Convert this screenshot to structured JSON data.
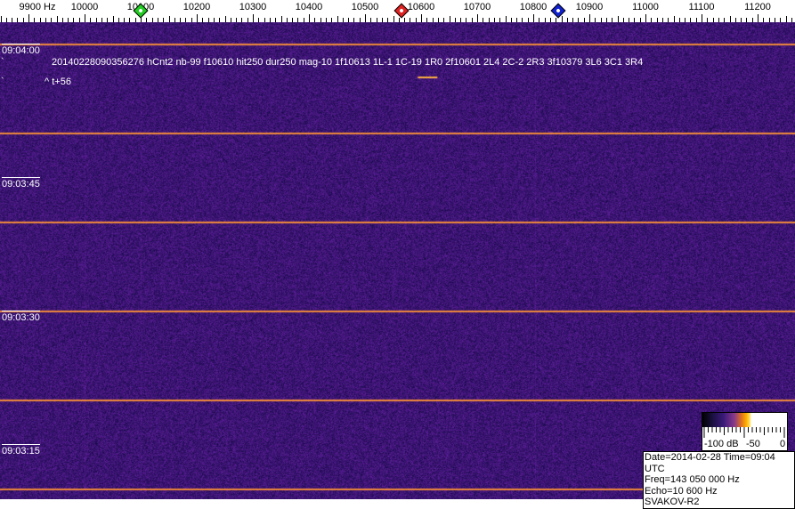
{
  "chart_data": {
    "type": "heatmap",
    "subtype": "spectrogram waterfall",
    "x_axis": {
      "unit_label": "Hz",
      "tick_labels": [
        "9900 Hz",
        "10000",
        "10100",
        "10200",
        "10300",
        "10400",
        "10500",
        "10600",
        "10700",
        "10800",
        "10900",
        "11000",
        "11100",
        "11200"
      ],
      "ticks": [
        9900,
        10000,
        10100,
        10200,
        10300,
        10400,
        10500,
        10600,
        10700,
        10800,
        10900,
        11000,
        11100,
        11200
      ],
      "range": [
        9845,
        11265
      ]
    },
    "y_axis": {
      "tick_labels": [
        "09:04:00",
        "09:03:45",
        "09:03:30",
        "09:03:15"
      ],
      "range": [
        "09:04:05",
        "09:03:11"
      ],
      "direction": "time increases upward"
    },
    "markers": [
      {
        "frequency": 10100,
        "color": "#22cc22"
      },
      {
        "frequency": 10565,
        "color": "#dd2222"
      },
      {
        "frequency": 10845,
        "color": "#1122cc"
      }
    ],
    "horizontal_lines_seconds": [
      "09:04:01",
      "09:03:46",
      "09:03:31",
      "09:03:16",
      "09:03:01",
      "09:02:46"
    ],
    "event": {
      "frequency": 10610,
      "time": "09:03:56"
    },
    "colorscale": {
      "tick_labels": [
        "-100 dB",
        "-50",
        "0"
      ],
      "min": -100,
      "max": 0,
      "colors": [
        "#000000",
        "#3a1a7a",
        "#e07020",
        "#ffb000",
        "#ffffff"
      ]
    },
    "background_color": "#2a1070"
  },
  "annotation": {
    "detection": "20140228090356276 hCnt2 nb-99 f10610 hit250 dur250 mag-10 1f10613 1L-1 1C-19 1R0 2f10601 2L4 2C-2 2R3 3f10379 3L6 3C1 3R4",
    "offset": "^ t+56",
    "tick1": "`",
    "tick2": "`"
  },
  "info": {
    "line1": "Date=2014-02-28 Time=09:04 UTC",
    "line2": "Freq=143 050 000 Hz",
    "line3": "Echo=10 600 Hz",
    "line4": "SVAKOV-R2"
  }
}
